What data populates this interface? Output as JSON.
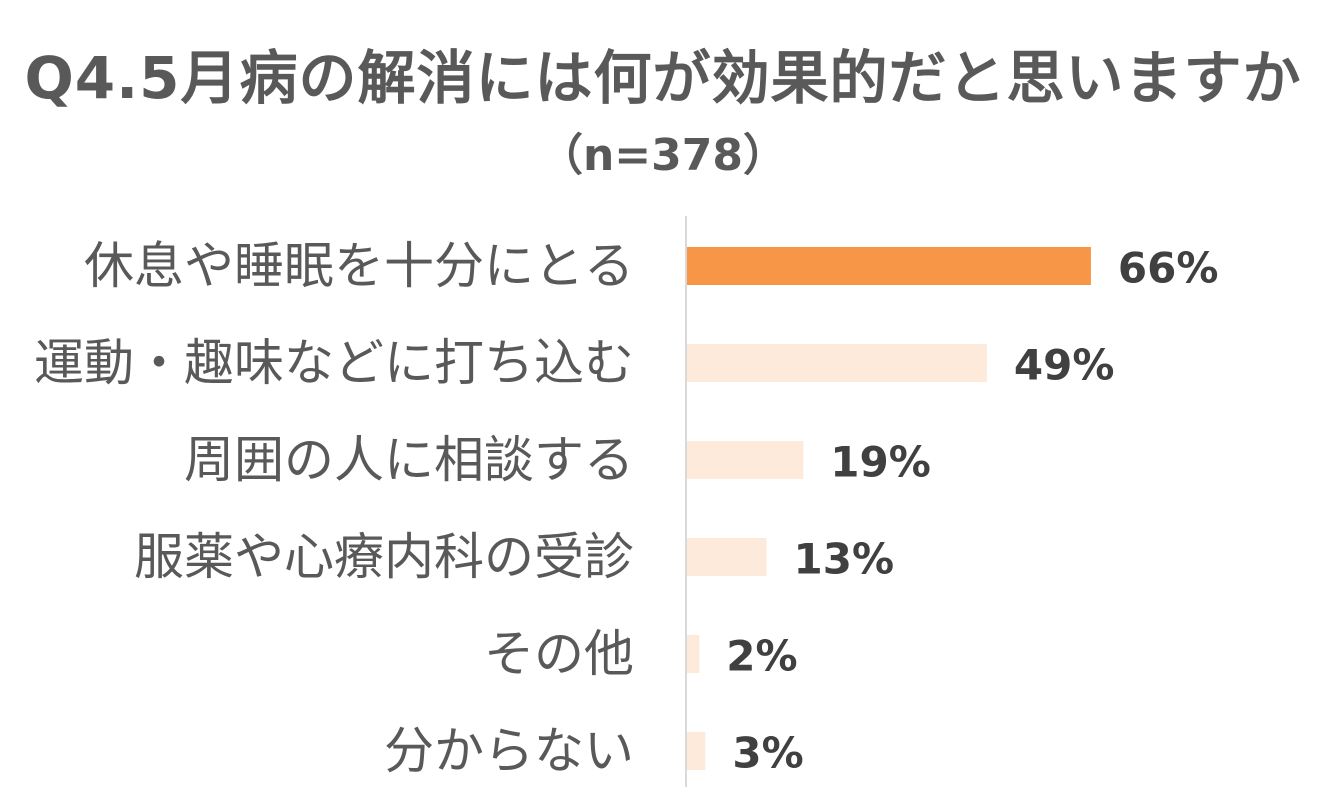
{
  "chart_data": {
    "type": "bar",
    "orientation": "horizontal",
    "title": "Q4.5月病の解消には何が効果的だと思いますか",
    "subtitle": "（n=378）",
    "categories": [
      "休息や睡眠を十分にとる",
      "運動・趣味などに打ち込む",
      "周囲の人に相談する",
      "服薬や心療内科の受診",
      "その他",
      "分からない"
    ],
    "values": [
      66,
      49,
      19,
      13,
      2,
      3
    ],
    "value_labels": [
      "66%",
      "49%",
      "19%",
      "13%",
      "2%",
      "3%"
    ],
    "unit": "%",
    "xlim": [
      0,
      100
    ],
    "grid": false,
    "legend": "none",
    "colors": {
      "highlight": "#F79646",
      "default": "#FDEADA",
      "axis": "#D9D9D9"
    },
    "highlight_index": 0
  }
}
